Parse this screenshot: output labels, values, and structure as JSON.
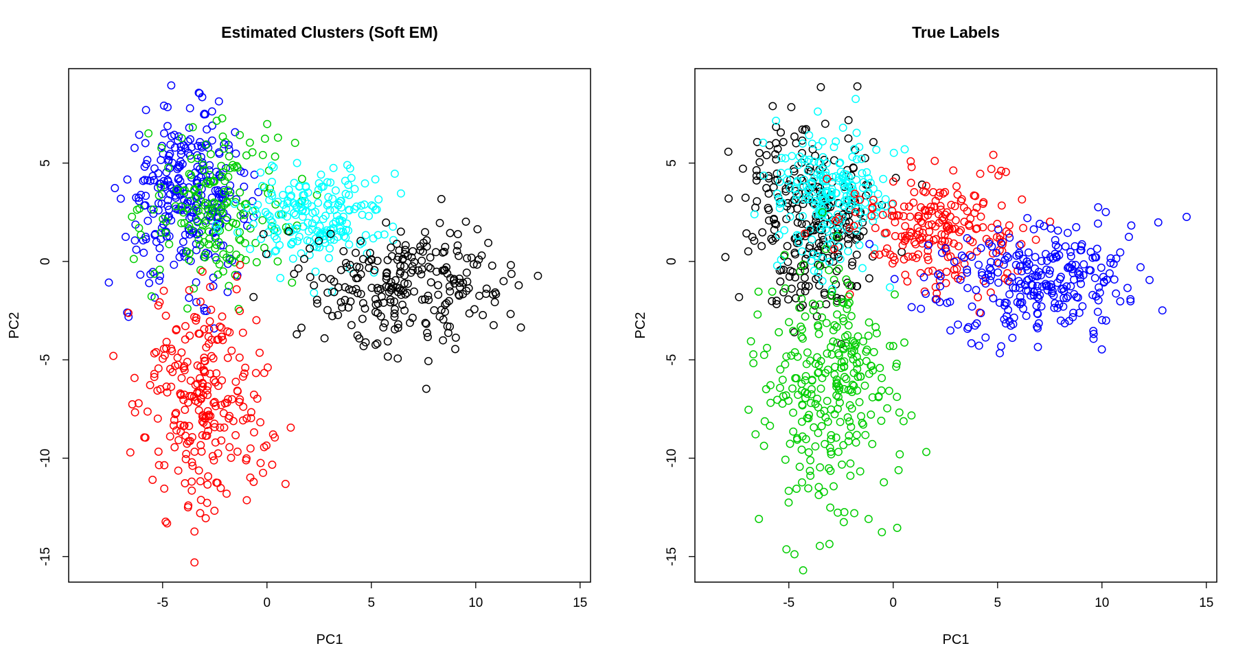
{
  "chart_data": [
    {
      "type": "scatter",
      "title": "Estimated Clusters (Soft EM)",
      "xlabel": "PC1",
      "ylabel": "PC2",
      "xlim": [
        -9.5,
        15.5
      ],
      "ylim": [
        -16.3,
        9.8
      ],
      "xticks": [
        -5,
        0,
        5,
        10,
        15
      ],
      "yticks": [
        -15,
        -10,
        -5,
        0,
        5
      ],
      "xtick_labels": [
        "-5",
        "0",
        "5",
        "10",
        "15"
      ],
      "ytick_labels": [
        "-15",
        "-10",
        "-5",
        "0",
        "5"
      ],
      "grid": false,
      "legend": "none",
      "marker": "open-circle",
      "groups": [
        {
          "color": "#0000FF",
          "center": [
            -3.8,
            3.2
          ],
          "spread": [
            1.45,
            2.1
          ],
          "n": 300
        },
        {
          "color": "#00CD00",
          "center": [
            -2.2,
            2.8
          ],
          "spread": [
            1.8,
            2.0
          ],
          "n": 180
        },
        {
          "color": "#00FFFF",
          "center": [
            2.2,
            2.3
          ],
          "spread": [
            1.8,
            1.3
          ],
          "n": 200
        },
        {
          "color": "#000000",
          "center": [
            7.0,
            -1.1
          ],
          "spread": [
            2.4,
            1.6
          ],
          "n": 250
        },
        {
          "color": "#FF0000",
          "center": [
            -3.0,
            -7.2
          ],
          "spread": [
            1.6,
            2.7
          ],
          "n": 260
        }
      ]
    },
    {
      "type": "scatter",
      "title": "True Labels",
      "xlabel": "PC1",
      "ylabel": "PC2",
      "xlim": [
        -9.5,
        15.5
      ],
      "ylim": [
        -16.3,
        9.8
      ],
      "xticks": [
        -5,
        0,
        5,
        10,
        15
      ],
      "yticks": [
        -15,
        -10,
        -5,
        0,
        5
      ],
      "xtick_labels": [
        "-5",
        "0",
        "5",
        "10",
        "15"
      ],
      "ytick_labels": [
        "-15",
        "-10",
        "-5",
        "0",
        "5"
      ],
      "grid": false,
      "legend": "none",
      "marker": "open-circle",
      "groups": [
        {
          "color": "#000000",
          "center": [
            -4.0,
            2.4
          ],
          "spread": [
            1.6,
            2.6
          ],
          "n": 280
        },
        {
          "color": "#00FFFF",
          "center": [
            -3.0,
            3.2
          ],
          "spread": [
            1.3,
            1.6
          ],
          "n": 220
        },
        {
          "color": "#FF0000",
          "center": [
            2.2,
            1.6
          ],
          "spread": [
            1.9,
            1.5
          ],
          "n": 220
        },
        {
          "color": "#0000FF",
          "center": [
            6.8,
            -1.0
          ],
          "spread": [
            2.6,
            1.5
          ],
          "n": 270
        },
        {
          "color": "#00CD00",
          "center": [
            -3.0,
            -6.5
          ],
          "spread": [
            1.6,
            3.0
          ],
          "n": 290
        }
      ]
    }
  ]
}
